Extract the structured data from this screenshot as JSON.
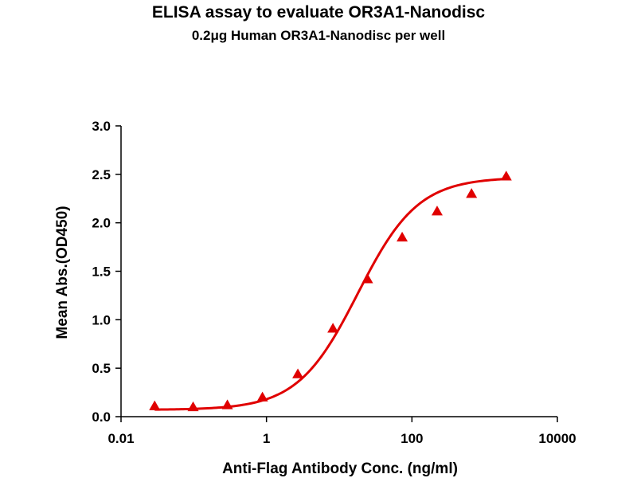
{
  "chart_data": {
    "type": "scatter",
    "title": "ELISA assay to evaluate OR3A1-Nanodisc",
    "subtitle": "0.2μg Human OR3A1-Nanodisc per well",
    "xlabel": "Anti-Flag Antibody Conc. (ng/ml)",
    "ylabel": "Mean Abs.(OD450)",
    "x_scale": "log",
    "xlim": [
      0.01,
      10000
    ],
    "ylim": [
      0,
      3.0
    ],
    "x_ticks": [
      0.01,
      1,
      100,
      10000
    ],
    "x_tick_labels": [
      "0.01",
      "1",
      "100",
      "10000"
    ],
    "y_ticks": [
      0,
      0.5,
      1.0,
      1.5,
      2.0,
      2.5,
      3.0
    ],
    "y_tick_labels": [
      "0.0",
      "0.5",
      "1.0",
      "1.5",
      "2.0",
      "2.5",
      "3.0"
    ],
    "grid": false,
    "legend": "none",
    "marker": "triangle",
    "color": "#e00000",
    "series": [
      {
        "x": [
          0.029,
          0.098,
          0.29,
          0.88,
          2.7,
          8.2,
          24.5,
          73.4,
          222,
          660,
          1980
        ],
        "y": [
          0.11,
          0.1,
          0.12,
          0.2,
          0.44,
          0.91,
          1.42,
          1.85,
          2.12,
          2.3,
          2.48
        ]
      }
    ],
    "fit_curve": {
      "type": "4PL",
      "bottom": 0.07,
      "top": 2.47,
      "ec50": 18,
      "hill": 1.05
    }
  }
}
